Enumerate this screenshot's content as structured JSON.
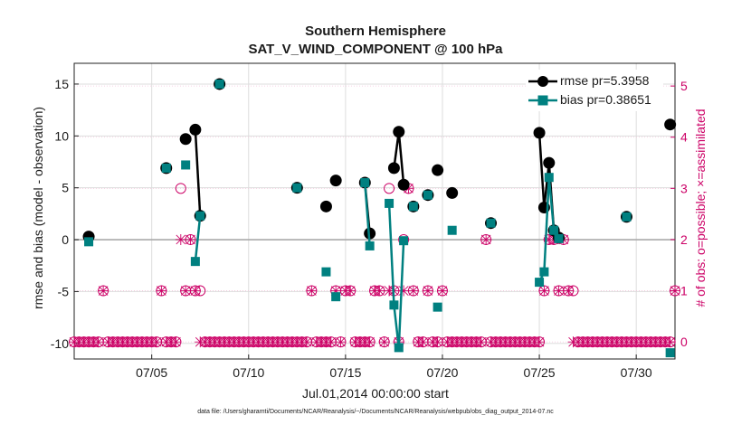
{
  "chart_data": {
    "type": "scatter",
    "title": "Southern Hemisphere",
    "subtitle": "SAT_V_WIND_COMPONENT @ 100 hPa",
    "xlabel": "Jul.01,2014 00:00:00 start",
    "ylabel": "rmse and bias (model - observation)",
    "ylabel_right": "# of obs: o=possible; ×=assimilated",
    "xlim": [
      1,
      32
    ],
    "ylim": [
      -11.5,
      17
    ],
    "ylim_right": [
      -0.333,
      5.444
    ],
    "x_ticks": [
      5,
      10,
      15,
      20,
      25,
      30
    ],
    "x_tick_labels": [
      "07/05",
      "07/10",
      "07/15",
      "07/20",
      "07/25",
      "07/30"
    ],
    "y_ticks": [
      -10,
      -5,
      0,
      5,
      10,
      15
    ],
    "y_tick_labels": [
      "-10",
      "-5",
      "0",
      "5",
      "10",
      "15"
    ],
    "y_right_ticks": [
      0,
      1,
      2,
      3,
      4,
      5
    ],
    "y_right_tick_labels": [
      "0",
      "1",
      "2",
      "3",
      "4",
      "5"
    ],
    "grid": true,
    "legend_position": "top-right",
    "series": [
      {
        "name": "rmse pr=5.3958",
        "color": "#000000",
        "marker": "circle",
        "x": [
          1.75,
          5.75,
          6.75,
          7.25,
          7.5,
          8.5,
          12.5,
          14,
          14.5,
          16,
          16.25,
          17.5,
          17.75,
          18,
          18.5,
          19.25,
          19.75,
          20.5,
          22.5,
          25,
          25.25,
          25.5,
          25.75,
          26,
          29.5,
          31.75
        ],
        "y": [
          0.3,
          6.9,
          9.7,
          10.6,
          2.3,
          15.0,
          5.0,
          3.2,
          5.7,
          5.5,
          0.6,
          6.9,
          10.4,
          5.3,
          3.2,
          4.3,
          6.7,
          4.5,
          1.6,
          10.3,
          3.1,
          7.4,
          0.9,
          0.2,
          2.2,
          11.1
        ]
      },
      {
        "name": "bias pr=0.38651",
        "color": "#008080",
        "marker": "square",
        "x": [
          1.75,
          5.75,
          6.75,
          7.25,
          7.5,
          8.5,
          12.5,
          14,
          14.5,
          16,
          16.25,
          17.25,
          17.5,
          17.75,
          18,
          18.5,
          19.25,
          19.75,
          20.5,
          22.5,
          25,
          25.25,
          25.5,
          25.75,
          26,
          29.5,
          31.75
        ],
        "y": [
          -0.2,
          6.9,
          7.2,
          -2.1,
          2.3,
          15.0,
          5.0,
          -3.1,
          -5.5,
          5.5,
          -0.6,
          3.5,
          -6.3,
          -10.4,
          -0.1,
          3.2,
          4.3,
          -6.5,
          0.9,
          1.6,
          -4.1,
          -3.1,
          6.0,
          0.9,
          0.1,
          2.2,
          -10.9
        ]
      }
    ],
    "obs_possible_counts": [
      0,
      0,
      0,
      0,
      0,
      0,
      1,
      0,
      0,
      0,
      0,
      0,
      0,
      0,
      0,
      0,
      0,
      0,
      1,
      0,
      0,
      0,
      3,
      1,
      2,
      1,
      1,
      0,
      0,
      0,
      0,
      0,
      0,
      0,
      0,
      0,
      0,
      0,
      0,
      0,
      0,
      0,
      0,
      0,
      0,
      0,
      0,
      0,
      0,
      1,
      0,
      0,
      0,
      0,
      1,
      0,
      1,
      1,
      0,
      0,
      0,
      0,
      1,
      1,
      0,
      3,
      1,
      0,
      2,
      3,
      1,
      0,
      0,
      1,
      0,
      0,
      1,
      0,
      0,
      0,
      0,
      0,
      0,
      0,
      0,
      2,
      0,
      0,
      0,
      0,
      0,
      0,
      0,
      0,
      0,
      0,
      0,
      1,
      2,
      2,
      1,
      2,
      1,
      1,
      0,
      0,
      0,
      0,
      0,
      0,
      0,
      0,
      0,
      0,
      0,
      0,
      0,
      0,
      0,
      0,
      0,
      0,
      0,
      0,
      1
    ],
    "obs_assimilated_counts": [
      0,
      0,
      0,
      0,
      0,
      0,
      1,
      0,
      0,
      0,
      0,
      0,
      0,
      0,
      0,
      0,
      0,
      0,
      1,
      0,
      0,
      0,
      2,
      1,
      2,
      1,
      0,
      0,
      0,
      0,
      0,
      0,
      0,
      0,
      0,
      0,
      0,
      0,
      0,
      0,
      0,
      0,
      0,
      0,
      0,
      0,
      0,
      0,
      0,
      1,
      0,
      0,
      0,
      0,
      1,
      0,
      1,
      1,
      0,
      0,
      0,
      0,
      1,
      1,
      0,
      1,
      1,
      0,
      1,
      3,
      1,
      0,
      0,
      1,
      0,
      0,
      1,
      0,
      0,
      0,
      0,
      0,
      0,
      0,
      0,
      2,
      0,
      0,
      0,
      0,
      0,
      0,
      0,
      0,
      0,
      0,
      0,
      1,
      2,
      2,
      1,
      2,
      1,
      0,
      0,
      0,
      0,
      0,
      0,
      0,
      0,
      0,
      0,
      0,
      0,
      0,
      0,
      0,
      0,
      0,
      0,
      0,
      0,
      0,
      1
    ],
    "obs_start_x": 1,
    "obs_step_x": 0.25
  },
  "footnote": "data file: /Users/gharamti/Documents/NCAR/Reanalysis/~/Documents/NCAR/Reanalysis/webpub/obs_diag_output_2014-07.nc",
  "colors": {
    "rmse": "#000000",
    "bias": "#008080",
    "obs": "#cc0066",
    "grid": "#dddddd",
    "zero_line": "#aaaaaa"
  }
}
